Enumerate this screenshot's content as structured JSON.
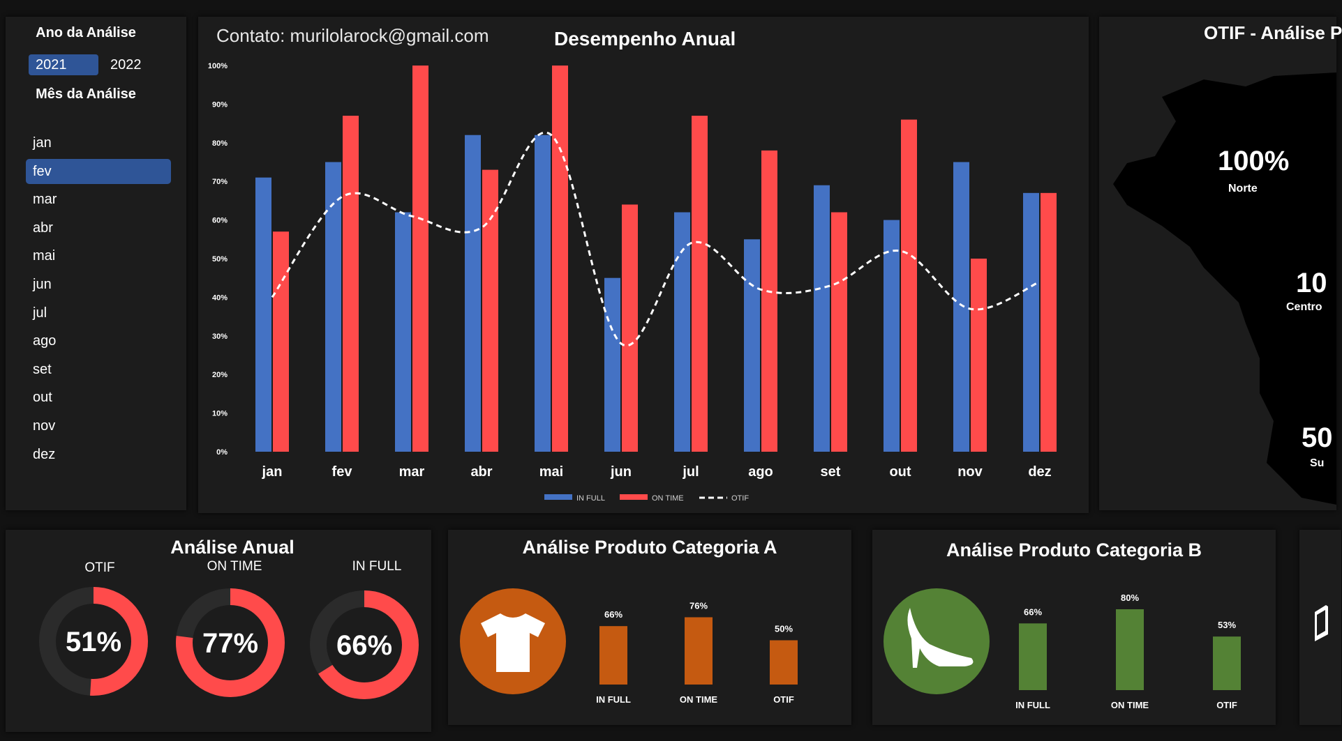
{
  "sidebar": {
    "year_title": "Ano da Análise",
    "years": [
      "2021",
      "2022"
    ],
    "active_year": 0,
    "month_title": "Mês da Análise",
    "months": [
      "jan",
      "fev",
      "mar",
      "abr",
      "mai",
      "jun",
      "jul",
      "ago",
      "set",
      "out",
      "nov",
      "dez"
    ],
    "active_month": 1
  },
  "header": {
    "contact": "Contato: murilolarock@gmail.com"
  },
  "chart_data": {
    "type": "bar",
    "title": "Desempenho Anual",
    "categories": [
      "jan",
      "fev",
      "mar",
      "abr",
      "mai",
      "jun",
      "jul",
      "ago",
      "set",
      "out",
      "nov",
      "dez"
    ],
    "series": [
      {
        "name": "IN FULL",
        "kind": "bar",
        "color": "#4472c4",
        "values": [
          71,
          75,
          62,
          82,
          82,
          45,
          62,
          55,
          69,
          60,
          75,
          67
        ]
      },
      {
        "name": "ON TIME",
        "kind": "bar",
        "color": "#ff4b4b",
        "values": [
          57,
          87,
          100,
          73,
          100,
          64,
          87,
          78,
          62,
          86,
          50,
          67
        ]
      },
      {
        "name": "OTIF",
        "kind": "line",
        "style": "dashed",
        "color": "#ffffff",
        "values": [
          40,
          66,
          61,
          58,
          82,
          28,
          54,
          42,
          43,
          52,
          37,
          44
        ]
      }
    ],
    "ylim": [
      0,
      100
    ],
    "yticks": [
      "0%",
      "10%",
      "20%",
      "30%",
      "40%",
      "50%",
      "60%",
      "70%",
      "80%",
      "90%",
      "100%"
    ],
    "legend_position": "bottom"
  },
  "map": {
    "title": "OTIF - Análise P",
    "regions": [
      {
        "pct": "100%",
        "name": "Norte"
      },
      {
        "pct": "10",
        "name": "Centro"
      },
      {
        "pct": "50",
        "name": "Su"
      }
    ],
    "map_color": "#000000"
  },
  "annual": {
    "title": "Análise Anual",
    "donuts": [
      {
        "label": "OTIF",
        "value": 51,
        "text": "51%"
      },
      {
        "label": "ON TIME",
        "value": 77,
        "text": "77%"
      },
      {
        "label": "IN FULL",
        "value": 66,
        "text": "66%"
      }
    ],
    "ring_color": "#ff4b4b",
    "track_color": "#2b2b2b"
  },
  "categoryA": {
    "title": "Análise Produto Categoria A",
    "icon": "tshirt-icon",
    "color": "#c55a11",
    "bars": [
      {
        "label": "IN FULL",
        "value": 66,
        "text": "66%"
      },
      {
        "label": "ON TIME",
        "value": 76,
        "text": "76%"
      },
      {
        "label": "OTIF",
        "value": 50,
        "text": "50%"
      }
    ]
  },
  "categoryB": {
    "title": "Análise Produto Categoria B",
    "icon": "high-heel-icon",
    "color": "#548235",
    "bars": [
      {
        "label": "IN FULL",
        "value": 66,
        "text": "66%"
      },
      {
        "label": "ON TIME",
        "value": 80,
        "text": "80%"
      },
      {
        "label": "OTIF",
        "value": 53,
        "text": "53%"
      }
    ]
  }
}
